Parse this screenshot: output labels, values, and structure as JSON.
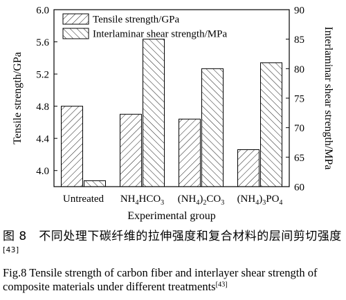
{
  "chart_data": {
    "type": "bar",
    "categories": [
      {
        "main": "Untreated",
        "parts": [
          {
            "t": "Untreated",
            "sub": false
          }
        ]
      },
      {
        "main": "NH4HCO3",
        "parts": [
          {
            "t": "NH",
            "sub": false
          },
          {
            "t": "4",
            "sub": true
          },
          {
            "t": "HCO",
            "sub": false
          },
          {
            "t": "3",
            "sub": true
          }
        ]
      },
      {
        "main": "(NH4)2CO3",
        "parts": [
          {
            "t": "(NH",
            "sub": false
          },
          {
            "t": "4",
            "sub": true
          },
          {
            "t": ")",
            "sub": false
          },
          {
            "t": "2",
            "sub": true
          },
          {
            "t": "CO",
            "sub": false
          },
          {
            "t": "3",
            "sub": true
          }
        ]
      },
      {
        "main": "(NH4)3PO4",
        "parts": [
          {
            "t": "(NH",
            "sub": false
          },
          {
            "t": "4",
            "sub": true
          },
          {
            "t": ")",
            "sub": false
          },
          {
            "t": "3",
            "sub": true
          },
          {
            "t": "PO",
            "sub": false
          },
          {
            "t": "4",
            "sub": true
          }
        ]
      }
    ],
    "series": [
      {
        "name": "Tensile strength/GPa",
        "axis": "left",
        "pattern": "diag-right",
        "values": [
          4.8,
          4.7,
          4.64,
          4.26
        ]
      },
      {
        "name": "Interlaminar shear strength/MPa",
        "axis": "right",
        "pattern": "diag-left",
        "values": [
          61.0,
          85.0,
          80.0,
          81.0
        ]
      }
    ],
    "xlabel": "Experimental group",
    "ylabel_left": "Tensile strength/GPa",
    "ylabel_right": "Interlaminar shear strength/MPa",
    "ylim_left": [
      3.8,
      6.0
    ],
    "ylim_right": [
      60,
      90
    ],
    "yticks_left": [
      "4.0",
      "4.4",
      "4.8",
      "5.2",
      "5.6",
      "6.0"
    ],
    "yticks_right": [
      "60",
      "65",
      "70",
      "75",
      "80",
      "85",
      "90"
    ],
    "legend_position": "top-left",
    "grid": false
  },
  "caption": {
    "cn_prefix": "图 8　不同处理下碳纤维的拉伸强度和复合材料的层间剪切强度",
    "cn_ref": "[43]",
    "en_prefix": "Fig.8 Tensile strength of carbon fiber and interlayer shear strength of composite materials under different treatments",
    "en_ref": "[43]"
  }
}
